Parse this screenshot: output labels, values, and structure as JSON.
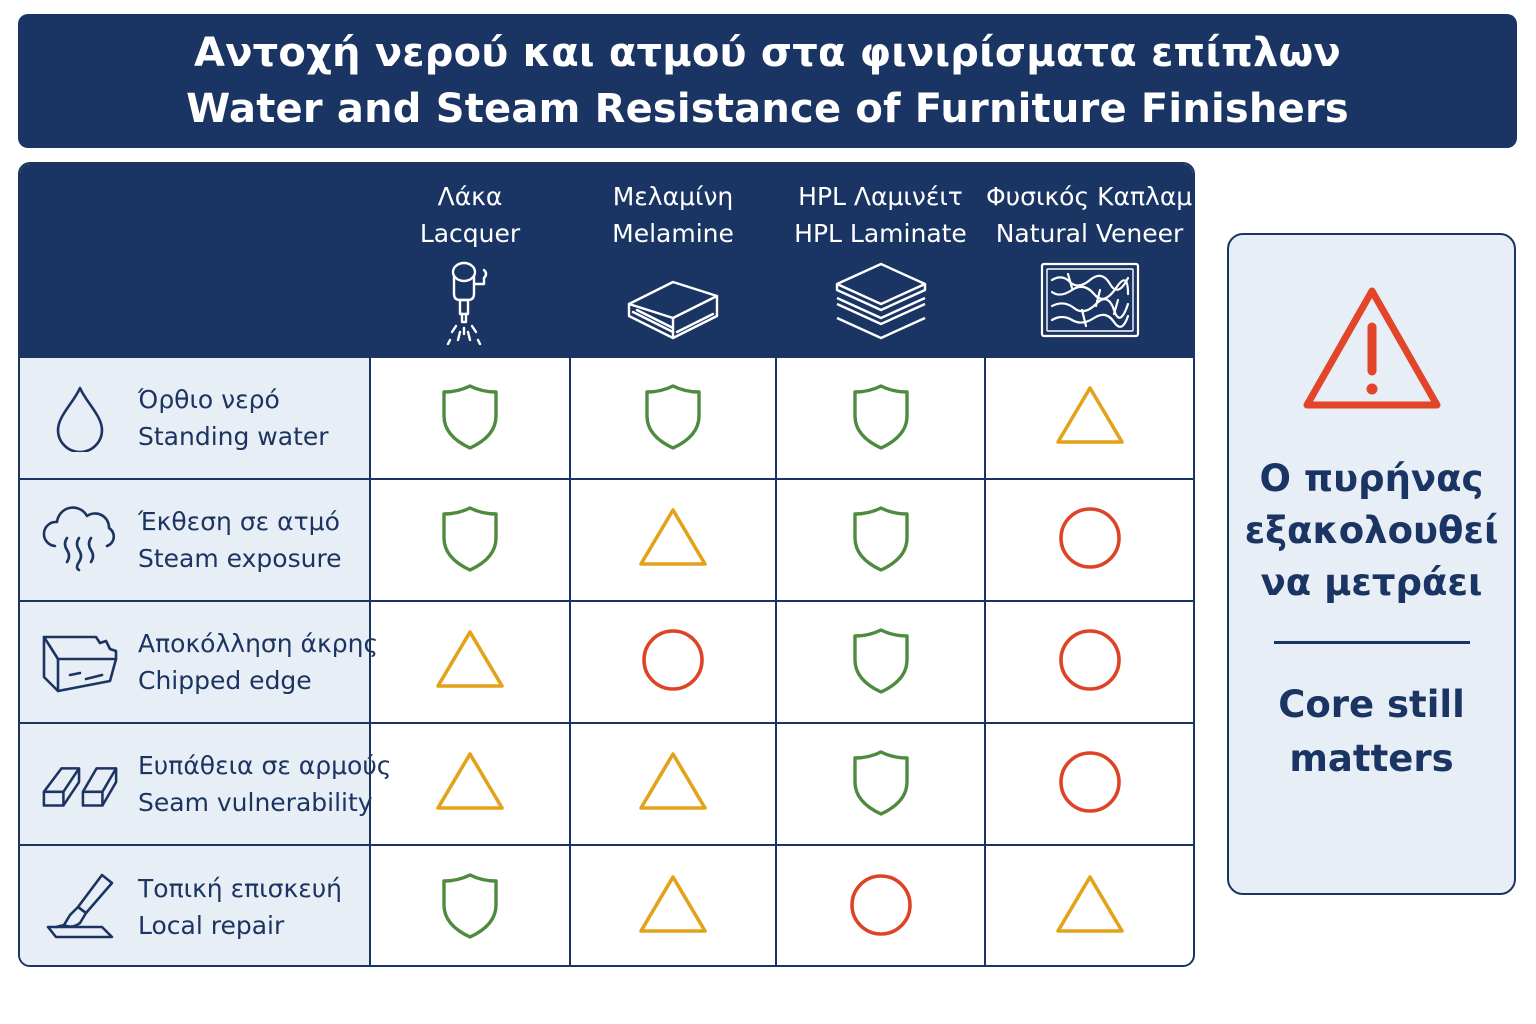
{
  "title": {
    "line_el": "Αντοχή νερού και ατμού στα φινιρίσματα επίπλων",
    "line_en": "Water and Steam Resistance of Furniture Finishers"
  },
  "columns": [
    {
      "label_el": "Λάκα",
      "label_en": "Lacquer",
      "icon": "spray-gun-icon"
    },
    {
      "label_el": "Μελαμίνη",
      "label_en": "Melamine",
      "icon": "board-icon"
    },
    {
      "label_el": "HPL Λαμινέιτ",
      "label_en": "HPL Laminate",
      "icon": "layers-icon"
    },
    {
      "label_el": "Φυσικός Καπλαμάς",
      "label_en": "Natural Veneer",
      "icon": "wood-grain-icon"
    }
  ],
  "rows": [
    {
      "label_el": "Όρθιο νερό",
      "label_en": "Standing water",
      "icon": "water-drop-icon",
      "ratings": [
        "resistant",
        "resistant",
        "resistant",
        "caution"
      ]
    },
    {
      "label_el": "Έκθεση σε ατμό",
      "label_en": "Steam exposure",
      "icon": "steam-cloud-icon",
      "ratings": [
        "resistant",
        "caution",
        "resistant",
        "vulnerable"
      ]
    },
    {
      "label_el": "Αποκόλληση άκρης",
      "label_en": "Chipped edge",
      "icon": "chipped-edge-icon",
      "ratings": [
        "caution",
        "vulnerable",
        "resistant",
        "vulnerable"
      ]
    },
    {
      "label_el": "Ευπάθεια σε αρμούς",
      "label_en": "Seam vulnerability",
      "icon": "seam-icon",
      "ratings": [
        "caution",
        "caution",
        "resistant",
        "vulnerable"
      ]
    },
    {
      "label_el": "Τοπική επισκευή",
      "label_en": "Local repair",
      "icon": "repair-brush-icon",
      "ratings": [
        "resistant",
        "caution",
        "vulnerable",
        "caution"
      ]
    }
  ],
  "rating_colors": {
    "resistant": "#4e8b3f",
    "caution": "#e3a21a",
    "vulnerable": "#dd4426"
  },
  "side_panel": {
    "icon": "warning-icon",
    "warning_color": "#e2452a",
    "text_el": [
      "Ο πυρήνας",
      "εξακολουθεί",
      "να μετράει"
    ],
    "text_en": [
      "Core still",
      "matters"
    ]
  }
}
